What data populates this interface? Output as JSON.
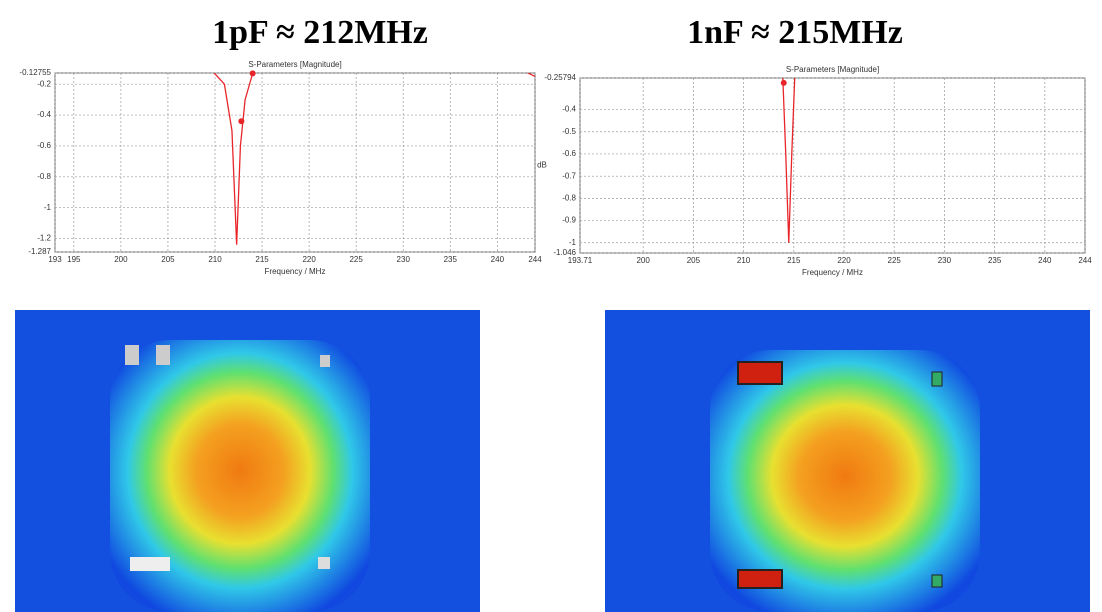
{
  "chart_data": [
    {
      "type": "line",
      "title": "1pF ≈ 212MHz",
      "subtitle": "S-Parameters [Magnitude]",
      "x_label": "Frequency / MHz",
      "x": [
        209.5,
        211,
        211.8,
        212.3,
        212.7,
        213.2,
        214,
        230,
        243,
        244
      ],
      "series": [
        {
          "color": "#e8262a",
          "values": [
            -0.1,
            -0.2,
            -0.5,
            -1.24,
            -0.6,
            -0.3,
            -0.13,
            null,
            -0.12,
            -0.15
          ]
        }
      ],
      "markers": {
        "x": [
          212.8,
          214
        ],
        "y": [
          -0.44,
          -0.13
        ]
      },
      "xlim": [
        193,
        244
      ],
      "xticks": [
        193,
        195,
        200,
        205,
        210,
        215,
        220,
        225,
        230,
        235,
        240,
        244
      ],
      "ylim": [
        -1.287,
        -0.12755
      ],
      "yticks": [
        -0.12755,
        -0.2,
        -0.4,
        -0.6,
        -0.8,
        -1,
        -1.2,
        -1.287
      ],
      "grid": true
    },
    {
      "type": "line",
      "title": "1nF ≈ 215MHz",
      "subtitle": "S-Parameters [Magnitude]",
      "x_label": "Frequency / MHz",
      "y_label": "dB",
      "x": [
        213.9,
        214.2,
        214.5,
        214.8,
        215.1
      ],
      "series": [
        {
          "color": "#e8262a",
          "values": [
            -0.25,
            -0.6,
            -1,
            -0.6,
            -0.25
          ]
        }
      ],
      "markers": {
        "x": [
          214
        ],
        "y": [
          -0.28
        ]
      },
      "xlim": [
        193.71,
        244
      ],
      "xticks": [
        193.71,
        200,
        205,
        210,
        215,
        220,
        225,
        230,
        235,
        240,
        244
      ],
      "ylim": [
        -1.046,
        -0.25794
      ],
      "yticks": [
        -0.25794,
        -0.4,
        -0.5,
        -0.6,
        -0.7,
        -0.8,
        -0.9,
        -1,
        -1.046
      ],
      "grid": true
    }
  ]
}
